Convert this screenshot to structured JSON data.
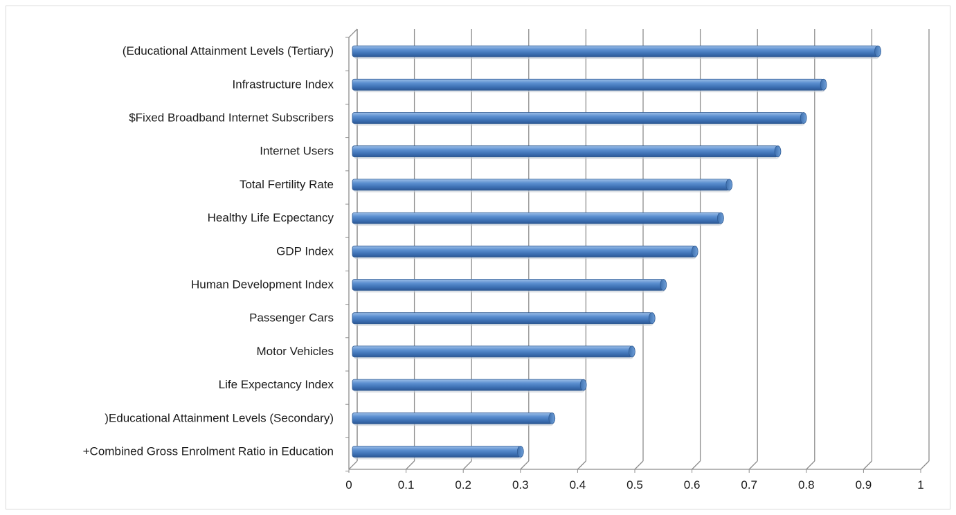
{
  "chart_data": {
    "type": "bar",
    "orientation": "horizontal",
    "style": "3d-cylinder",
    "title": "",
    "xlabel": "",
    "ylabel": "",
    "xlim": [
      0,
      1
    ],
    "x_ticks": [
      "0",
      "0.1",
      "0.2",
      "0.3",
      "0.4",
      "0.5",
      "0.6",
      "0.7",
      "0.8",
      "0.9",
      "1"
    ],
    "grid": "vertical",
    "legend": "none",
    "bar_color": "#4F81BD",
    "categories": [
      "(Educational Attainment Levels (Tertiary)",
      "Infrastructure Index",
      "$Fixed Broadband Internet Subscribers",
      "Internet Users",
      "Total Fertility Rate",
      "Healthy Life Ecpectancy",
      "GDP Index",
      "Human Development Index",
      "Passenger Cars",
      "Motor Vehicles",
      "Life Expectancy Index",
      ")Educational Attainment Levels (Secondary)",
      "+Combined Gross Enrolment Ratio in Education"
    ],
    "values": [
      0.925,
      0.83,
      0.795,
      0.75,
      0.665,
      0.65,
      0.605,
      0.55,
      0.53,
      0.495,
      0.41,
      0.355,
      0.3
    ]
  }
}
